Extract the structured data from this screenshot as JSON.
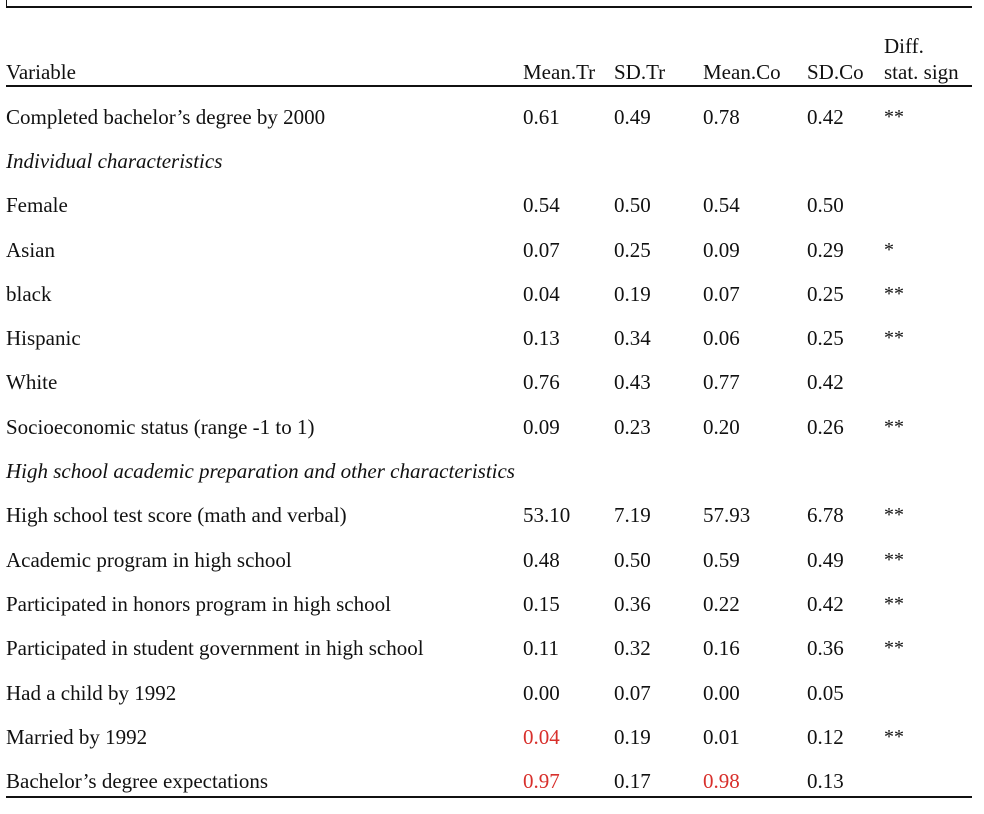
{
  "headers": {
    "variable": "Variable",
    "mean_tr": "Mean.Tr",
    "sd_tr": "SD.Tr",
    "mean_co": "Mean.Co",
    "sd_co": "SD.Co",
    "diff_line1": "Diff.",
    "diff_line2": "stat. sign"
  },
  "rows": [
    {
      "label": "Completed bachelor’s degree by 2000",
      "mean_tr": "0.61",
      "sd_tr": "0.49",
      "mean_co": "0.78",
      "sd_co": "0.42",
      "sign": "**"
    },
    {
      "section": "Individual characteristics"
    },
    {
      "label": "Female",
      "mean_tr": "0.54",
      "sd_tr": "0.50",
      "mean_co": "0.54",
      "sd_co": "0.50",
      "sign": ""
    },
    {
      "label": "Asian",
      "mean_tr": "0.07",
      "sd_tr": "0.25",
      "mean_co": "0.09",
      "sd_co": "0.29",
      "sign": "*"
    },
    {
      "label": "black",
      "mean_tr": "0.04",
      "sd_tr": "0.19",
      "mean_co": "0.07",
      "sd_co": "0.25",
      "sign": "**"
    },
    {
      "label": "Hispanic",
      "mean_tr": "0.13",
      "sd_tr": "0.34",
      "mean_co": "0.06",
      "sd_co": "0.25",
      "sign": "**"
    },
    {
      "label": "White",
      "mean_tr": "0.76",
      "sd_tr": "0.43",
      "mean_co": "0.77",
      "sd_co": "0.42",
      "sign": ""
    },
    {
      "label": "Socioeconomic status (range -1 to 1)",
      "mean_tr": "0.09",
      "sd_tr": "0.23",
      "mean_co": "0.20",
      "sd_co": "0.26",
      "sign": "**"
    },
    {
      "section": "High school academic preparation and other characteristics"
    },
    {
      "label": "High school test score (math and verbal)",
      "mean_tr": "53.10",
      "sd_tr": "7.19",
      "mean_co": "57.93",
      "sd_co": "6.78",
      "sign": "**"
    },
    {
      "label": "Academic program in high school",
      "mean_tr": "0.48",
      "sd_tr": "0.50",
      "mean_co": "0.59",
      "sd_co": "0.49",
      "sign": "**"
    },
    {
      "label": "Participated in honors program in high school",
      "mean_tr": "0.15",
      "sd_tr": "0.36",
      "mean_co": "0.22",
      "sd_co": "0.42",
      "sign": "**"
    },
    {
      "label": "Participated in student government in high school",
      "mean_tr": "0.11",
      "sd_tr": "0.32",
      "mean_co": "0.16",
      "sd_co": "0.36",
      "sign": "**"
    },
    {
      "label": "Had a child by 1992",
      "mean_tr": "0.00",
      "sd_tr": "0.07",
      "mean_co": "0.00",
      "sd_co": "0.05",
      "sign": ""
    },
    {
      "label": "Married by 1992",
      "mean_tr": "0.04",
      "sd_tr": "0.19",
      "mean_co": "0.01",
      "sd_co": "0.12",
      "sign": "**",
      "highlight": [
        "mean_tr"
      ]
    },
    {
      "label": "Bachelor’s degree expectations",
      "mean_tr": "0.97",
      "sd_tr": "0.17",
      "mean_co": "0.98",
      "sd_co": "0.13",
      "sign": "",
      "highlight": [
        "mean_tr",
        "mean_co"
      ]
    }
  ],
  "colors": {
    "text": "#111111",
    "highlight": "#d8302c",
    "rule": "#111111"
  }
}
